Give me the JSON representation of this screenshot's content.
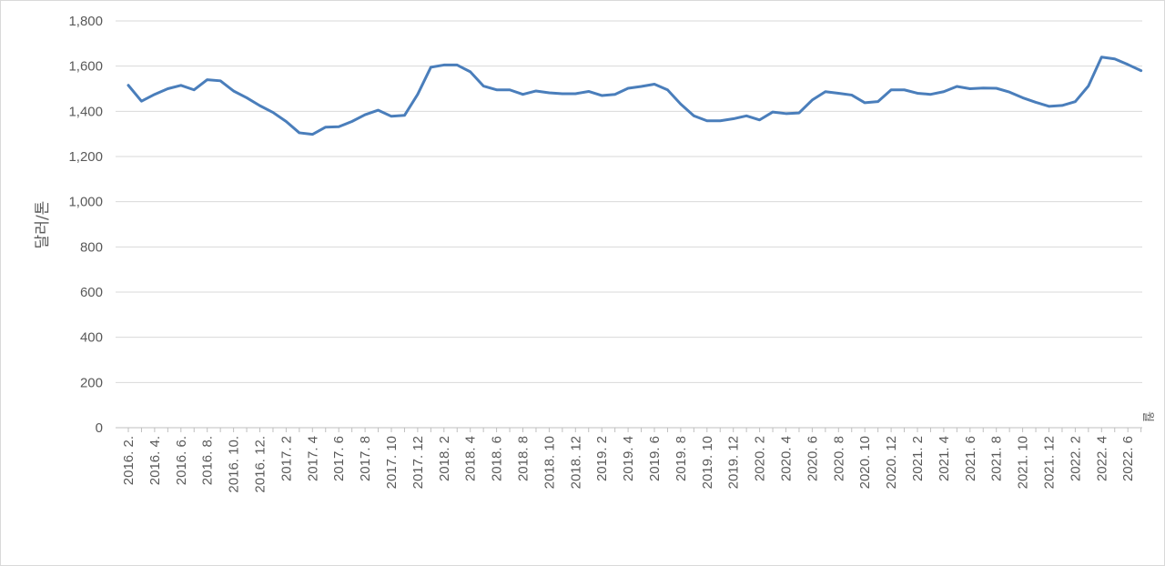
{
  "chart_data": {
    "type": "line",
    "title": "",
    "xlabel": "",
    "ylabel": "달러/톤",
    "x_unit_label": "월",
    "ylim": [
      0,
      1800
    ],
    "yticks": [
      "0",
      "200",
      "400",
      "600",
      "800",
      "1,000",
      "1,200",
      "1,400",
      "1,600",
      "1,800"
    ],
    "grid": true,
    "legend": "none",
    "line_color": "#4a7ebb",
    "x": [
      "2016. 2.",
      "2016. 3.",
      "2016. 4.",
      "2016. 5.",
      "2016. 6.",
      "2016. 7.",
      "2016. 8.",
      "2016. 9.",
      "2016. 10.",
      "2016. 11.",
      "2016. 12.",
      "2017. 1",
      "2017. 2",
      "2017. 3",
      "2017. 4",
      "2017. 5",
      "2017. 6",
      "2017. 7",
      "2017. 8",
      "2017. 9",
      "2017. 10",
      "2017. 11",
      "2017. 12",
      "2018. 1",
      "2018. 2",
      "2018. 3",
      "2018. 4",
      "2018. 5",
      "2018. 6",
      "2018. 7",
      "2018. 8",
      "2018. 9",
      "2018. 10",
      "2018. 11",
      "2018. 12",
      "2019. 1",
      "2019. 2",
      "2019. 3",
      "2019. 4",
      "2019. 5",
      "2019. 6",
      "2019. 7",
      "2019. 8",
      "2019. 9",
      "2019. 10",
      "2019. 11",
      "2019. 12",
      "2020. 1",
      "2020. 2",
      "2020. 3",
      "2020. 4",
      "2020. 5",
      "2020. 6",
      "2020. 7",
      "2020. 8",
      "2020. 9",
      "2020. 10",
      "2020. 11",
      "2020. 12",
      "2021. 1",
      "2021. 2",
      "2021. 3",
      "2021. 4",
      "2021. 5",
      "2021. 6",
      "2021. 7",
      "2021. 8",
      "2021. 9",
      "2021. 10",
      "2021. 11",
      "2021. 12",
      "2022. 1",
      "2022. 2",
      "2022. 3",
      "2022. 4",
      "2022. 5",
      "2022. 6",
      "2022. 7"
    ],
    "x_tick_labels": [
      "2016. 2.",
      "2016. 4.",
      "2016. 6.",
      "2016. 8.",
      "2016. 10.",
      "2016. 12.",
      "2017. 2",
      "2017. 4",
      "2017. 6",
      "2017. 8",
      "2017. 10",
      "2017. 12",
      "2018. 2",
      "2018. 4",
      "2018. 6",
      "2018. 8",
      "2018. 10",
      "2018. 12",
      "2019. 2",
      "2019. 4",
      "2019. 6",
      "2019. 8",
      "2019. 10",
      "2019. 12",
      "2020. 2",
      "2020. 4",
      "2020. 6",
      "2020. 8",
      "2020. 10",
      "2020. 12",
      "2021. 2",
      "2021. 4",
      "2021. 6",
      "2021. 8",
      "2021. 10",
      "2021. 12",
      "2022. 2",
      "2022. 4",
      "2022. 6"
    ],
    "series": [
      {
        "values": [
          1515,
          1445,
          1475,
          1500,
          1515,
          1495,
          1540,
          1535,
          1490,
          1460,
          1425,
          1395,
          1355,
          1305,
          1298,
          1330,
          1332,
          1355,
          1385,
          1405,
          1378,
          1382,
          1475,
          1595,
          1605,
          1605,
          1575,
          1512,
          1495,
          1495,
          1475,
          1490,
          1482,
          1478,
          1478,
          1488,
          1470,
          1475,
          1502,
          1510,
          1520,
          1495,
          1432,
          1380,
          1358,
          1358,
          1367,
          1380,
          1362,
          1397,
          1390,
          1393,
          1450,
          1487,
          1480,
          1472,
          1438,
          1443,
          1495,
          1495,
          1480,
          1475,
          1487,
          1510,
          1500,
          1503,
          1502,
          1485,
          1460,
          1440,
          1422,
          1426,
          1443,
          1512,
          1640,
          1632,
          1607,
          1580
        ]
      }
    ]
  }
}
